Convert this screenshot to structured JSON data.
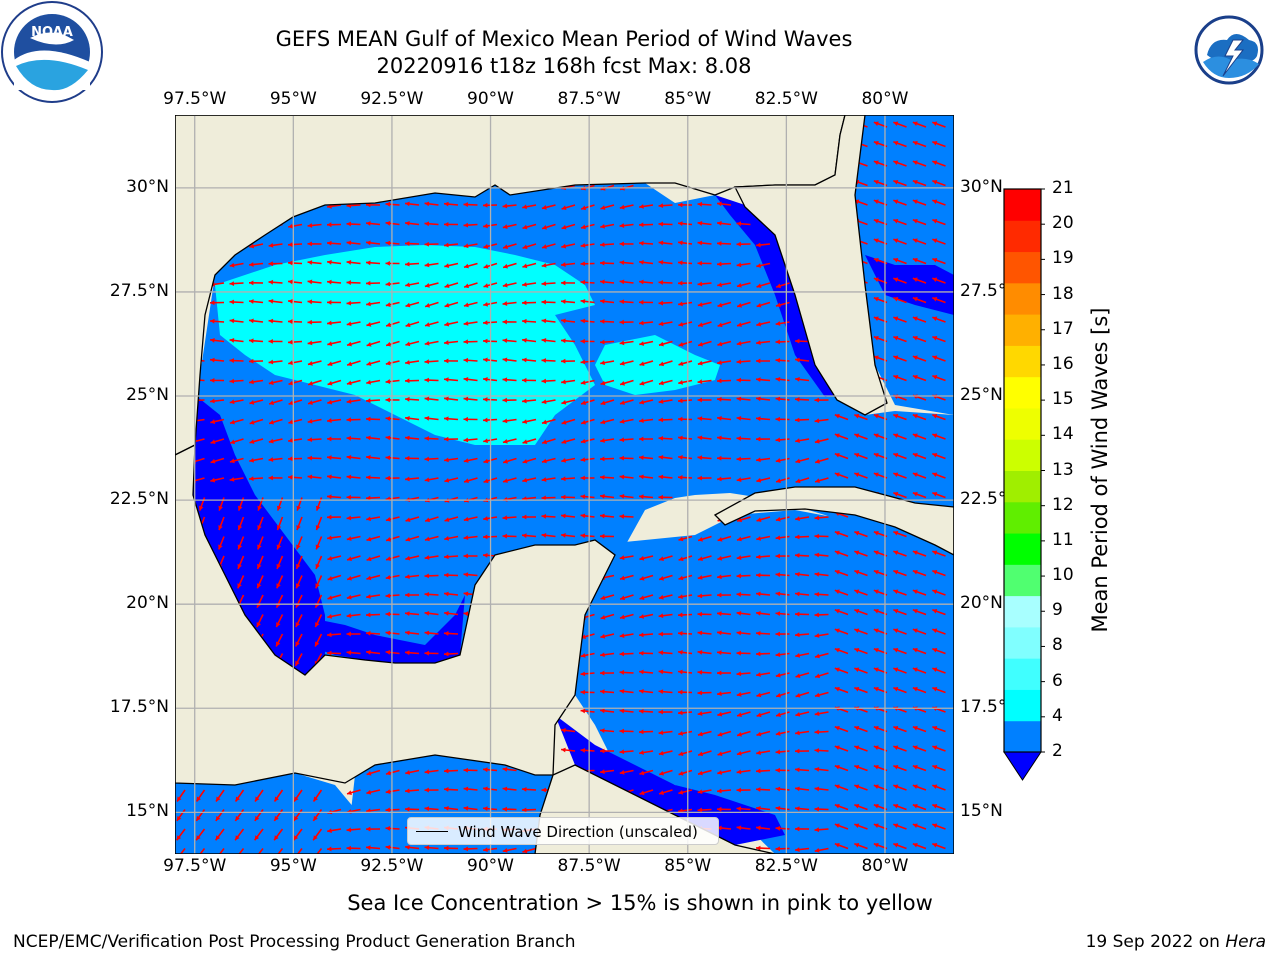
{
  "header": {
    "title_line1": "GEFS MEAN Gulf of Mexico Mean Period of Wind Waves",
    "title_line2": "20220916 t18z 168h fcst   Max: 8.08"
  },
  "logos": {
    "noaa": {
      "text": "NOAA",
      "ring_text": "NATIONAL OCEANIC AND ATMOSPHERIC ADMINISTRATION · U.S. DEPARTMENT OF COMMERCE"
    },
    "nws": {
      "ring_text": "NATIONAL WEATHER SERVICE"
    }
  },
  "map": {
    "lon_range": [
      -98.0,
      -78.25
    ],
    "lat_range": [
      14.0,
      31.75
    ],
    "lon_ticks": [
      "97.5°W",
      "95°W",
      "92.5°W",
      "90°W",
      "87.5°W",
      "85°W",
      "82.5°W",
      "80°W"
    ],
    "lat_ticks_left": [
      "30°N",
      "27.5°N",
      "25°N",
      "22.5°N",
      "20°N",
      "17.5°N",
      "15°N"
    ],
    "lat_ticks_right": [
      "30°N",
      "27.5°N",
      "25°N",
      "22.5°N",
      "20°N",
      "17.5°N",
      "15°N"
    ],
    "legend_text": "Wind Wave Direction (unscaled)",
    "land_color": "#efedda",
    "gridline_color": "#b0b0b0"
  },
  "colorbar": {
    "label": "Mean Period of Wind Waves [s]",
    "ticks": [
      "2",
      "4",
      "6",
      "8",
      "9",
      "10",
      "11",
      "12",
      "13",
      "14",
      "15",
      "16",
      "17",
      "18",
      "19",
      "20",
      "21"
    ],
    "colors": [
      "#0080ff",
      "#00ffff",
      "#40ffff",
      "#80ffff",
      "#a8ffff",
      "#50ff70",
      "#00ff00",
      "#60ee00",
      "#a0ee00",
      "#ccff00",
      "#eeff00",
      "#ffff00",
      "#ffd800",
      "#ffb000",
      "#ff8c00",
      "#ff5500",
      "#ff2a00",
      "#ff0000"
    ],
    "extend_color": "#0000ff"
  },
  "notes": {
    "sea_ice": "Sea Ice Concentration > 15% is shown in pink to yellow"
  },
  "footer": {
    "left": "NCEP/EMC/Verification Post Processing Product Generation Branch",
    "right_prefix": "19 Sep 2022 on ",
    "right_host": "Hera"
  }
}
